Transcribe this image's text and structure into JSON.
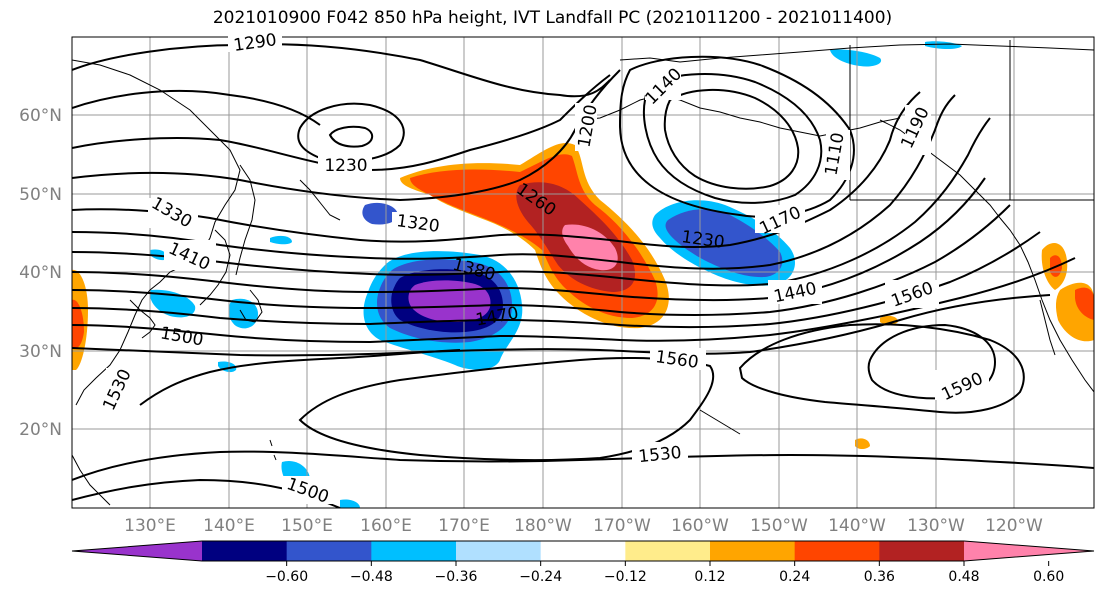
{
  "title": "2021010900 F042 850 hPa height, IVT Landfall PC (2021011200 - 2021011400)",
  "lat_labels": [
    "60°N",
    "50°N",
    "40°N",
    "30°N",
    "20°N"
  ],
  "lon_labels": [
    "130°E",
    "140°E",
    "150°E",
    "160°E",
    "170°E",
    "180°W",
    "170°W",
    "160°W",
    "150°W",
    "140°W",
    "130°W",
    "120°W"
  ],
  "colorbar": {
    "colors": [
      "#9933cc",
      "#000080",
      "#3355cc",
      "#00bfff",
      "#b0e0ff",
      "#ffffff",
      "#ffec8b",
      "#ffa500",
      "#ff4500",
      "#b22222",
      "#ff82ab"
    ],
    "tick_labels": [
      "−0.60",
      "−0.48",
      "−0.36",
      "−0.24",
      "−0.12",
      "0.12",
      "0.24",
      "0.36",
      "0.48",
      "0.60"
    ]
  },
  "contour_labels": [
    "1290",
    "1230",
    "1200",
    "1140",
    "1110",
    "1190",
    "1330",
    "1320",
    "1260",
    "1170",
    "1230",
    "1410",
    "1380",
    "1470",
    "1440",
    "1560",
    "1500",
    "1560",
    "1590",
    "1530",
    "1530",
    "1500"
  ]
}
